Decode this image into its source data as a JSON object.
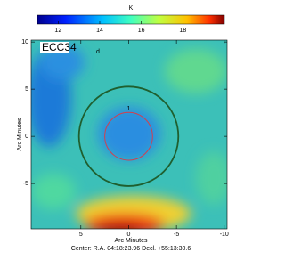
{
  "chart_data": {
    "type": "image",
    "colorbar_label": "K",
    "colorbar_lim": [
      11,
      20
    ],
    "colorbar_ticks": [
      12,
      14,
      16,
      18
    ],
    "xlabel": "Arc Minutes",
    "ylabel": "Arc Minutes",
    "xlim": [
      10.2,
      -10.3
    ],
    "ylim": [
      -9.8,
      10.2
    ],
    "xticks": [
      5,
      0,
      -5,
      -10
    ],
    "yticks": [
      10,
      5,
      0,
      -5
    ],
    "field_label": "ECC34",
    "field_sublabel": "d",
    "regions": [
      {
        "label": "1",
        "color": "#d04050",
        "x": 0,
        "y": 0,
        "r": 2.5
      },
      {
        "color": "#1f5f2f",
        "x": 0,
        "y": 0,
        "r": 5.2
      }
    ],
    "center_text": "Center:  R.A. 04:18:23.96  Decl. +55:13:30.6"
  }
}
